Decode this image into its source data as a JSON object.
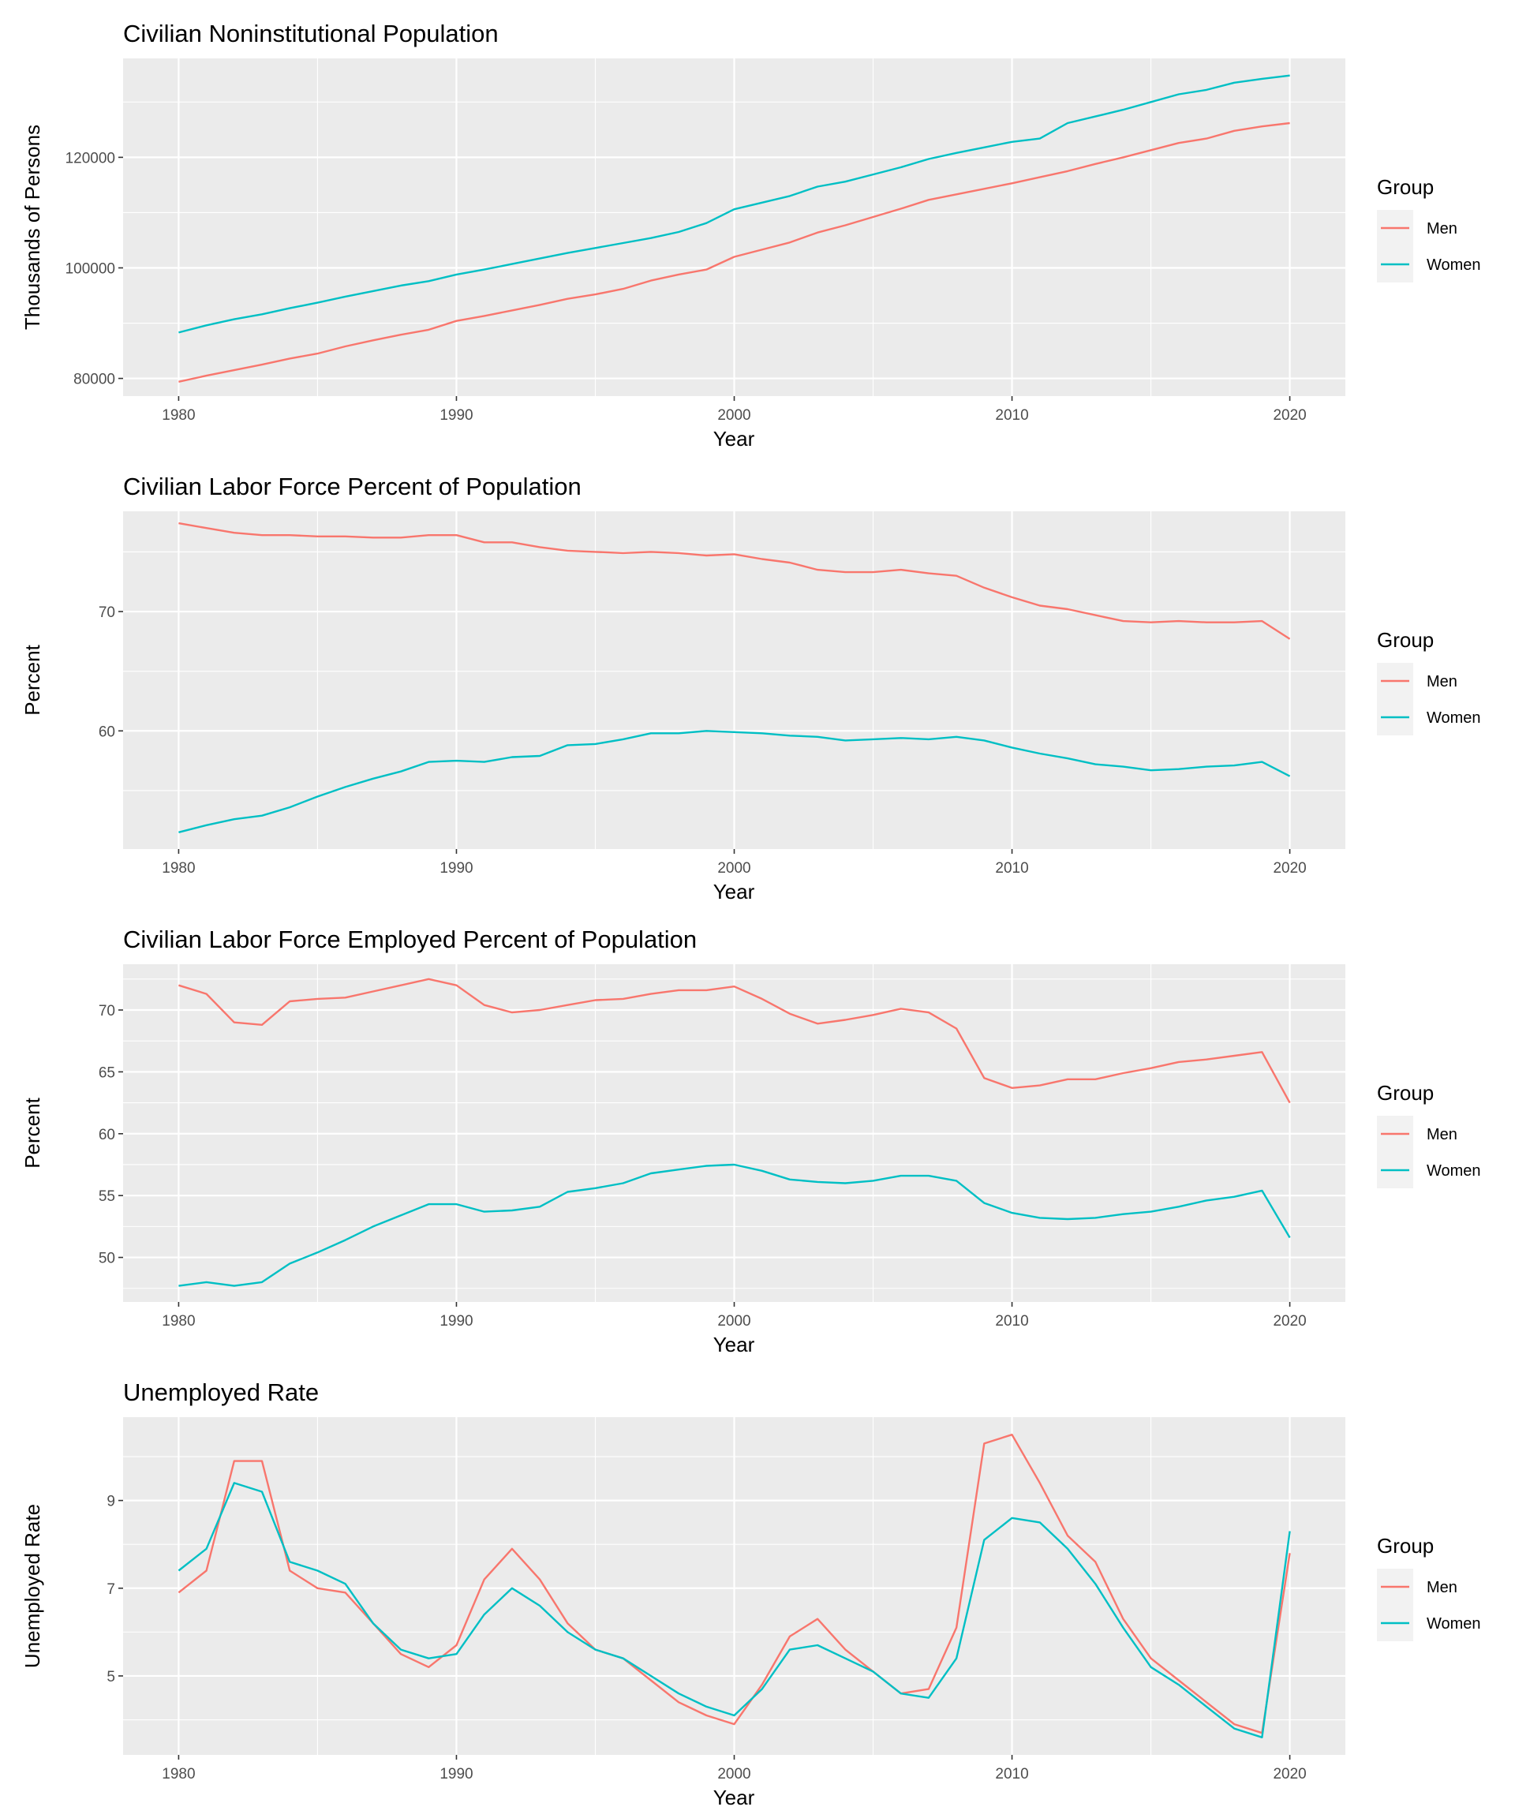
{
  "colors": {
    "men": "#F8766D",
    "women": "#00BFC4",
    "panel": "#EBEBEB",
    "grid": "#FFFFFF",
    "legend_key": "#F2F2F2"
  },
  "chart_data": [
    {
      "type": "line",
      "title": "Civilian Noninstitutional Population",
      "xlabel": "Year",
      "ylabel": "Thousands of Persons",
      "xlim": [
        1978,
        2022
      ],
      "ylim": [
        76800,
        137900
      ],
      "x_ticks": [
        1980,
        1990,
        2000,
        2010,
        2020
      ],
      "y_ticks": [
        80000,
        100000,
        120000
      ],
      "y_tick_labels": [
        "80000",
        "100000",
        "120000"
      ],
      "legend_title": "Group",
      "legend_position": "right",
      "x": [
        1980,
        1981,
        1982,
        1983,
        1984,
        1985,
        1986,
        1987,
        1988,
        1989,
        1990,
        1991,
        1992,
        1993,
        1994,
        1995,
        1996,
        1997,
        1998,
        1999,
        2000,
        2001,
        2002,
        2003,
        2004,
        2005,
        2006,
        2007,
        2008,
        2009,
        2010,
        2011,
        2012,
        2013,
        2014,
        2015,
        2016,
        2017,
        2018,
        2019,
        2020
      ],
      "series": [
        {
          "name": "Men",
          "values": [
            79400,
            80500,
            81500,
            82500,
            83600,
            84500,
            85800,
            86900,
            87900,
            88800,
            90400,
            91300,
            92300,
            93300,
            94400,
            95200,
            96200,
            97700,
            98800,
            99700,
            102000,
            103300,
            104600,
            106400,
            107700,
            109200,
            110700,
            112300,
            113300,
            114300,
            115300,
            116400,
            117500,
            118800,
            120000,
            121300,
            122600,
            123400,
            124800,
            125600,
            126200
          ]
        },
        {
          "name": "Women",
          "values": [
            88300,
            89600,
            90700,
            91600,
            92700,
            93700,
            94800,
            95800,
            96800,
            97600,
            98800,
            99700,
            100700,
            101700,
            102700,
            103600,
            104500,
            105400,
            106500,
            108100,
            110600,
            111800,
            113000,
            114700,
            115600,
            116900,
            118200,
            119700,
            120800,
            121800,
            122800,
            123400,
            126200,
            127400,
            128600,
            130000,
            131400,
            132200,
            133500,
            134200,
            134800
          ]
        }
      ]
    },
    {
      "type": "line",
      "title": "Civilian Labor Force Percent of Population",
      "xlabel": "Year",
      "ylabel": "Percent",
      "xlim": [
        1978,
        2022
      ],
      "ylim": [
        50.1,
        78.4
      ],
      "x_ticks": [
        1980,
        1990,
        2000,
        2010,
        2020
      ],
      "y_ticks": [
        60,
        70
      ],
      "y_tick_labels": [
        "60",
        "70"
      ],
      "legend_title": "Group",
      "legend_position": "right",
      "x": [
        1980,
        1981,
        1982,
        1983,
        1984,
        1985,
        1986,
        1987,
        1988,
        1989,
        1990,
        1991,
        1992,
        1993,
        1994,
        1995,
        1996,
        1997,
        1998,
        1999,
        2000,
        2001,
        2002,
        2003,
        2004,
        2005,
        2006,
        2007,
        2008,
        2009,
        2010,
        2011,
        2012,
        2013,
        2014,
        2015,
        2016,
        2017,
        2018,
        2019,
        2020
      ],
      "series": [
        {
          "name": "Men",
          "values": [
            77.4,
            77.0,
            76.6,
            76.4,
            76.4,
            76.3,
            76.3,
            76.2,
            76.2,
            76.4,
            76.4,
            75.8,
            75.8,
            75.4,
            75.1,
            75.0,
            74.9,
            75.0,
            74.9,
            74.7,
            74.8,
            74.4,
            74.1,
            73.5,
            73.3,
            73.3,
            73.5,
            73.2,
            73.0,
            72.0,
            71.2,
            70.5,
            70.2,
            69.7,
            69.2,
            69.1,
            69.2,
            69.1,
            69.1,
            69.2,
            67.7
          ]
        },
        {
          "name": "Women",
          "values": [
            51.5,
            52.1,
            52.6,
            52.9,
            53.6,
            54.5,
            55.3,
            56.0,
            56.6,
            57.4,
            57.5,
            57.4,
            57.8,
            57.9,
            58.8,
            58.9,
            59.3,
            59.8,
            59.8,
            60.0,
            59.9,
            59.8,
            59.6,
            59.5,
            59.2,
            59.3,
            59.4,
            59.3,
            59.5,
            59.2,
            58.6,
            58.1,
            57.7,
            57.2,
            57.0,
            56.7,
            56.8,
            57.0,
            57.1,
            57.4,
            56.2
          ]
        }
      ]
    },
    {
      "type": "line",
      "title": "Civilian Labor Force Employed Percent of Population",
      "xlabel": "Year",
      "ylabel": "Percent",
      "xlim": [
        1978,
        2022
      ],
      "ylim": [
        46.4,
        73.7
      ],
      "x_ticks": [
        1980,
        1990,
        2000,
        2010,
        2020
      ],
      "y_ticks": [
        50,
        55,
        60,
        65,
        70
      ],
      "y_tick_labels": [
        "50",
        "55",
        "60",
        "65",
        "70"
      ],
      "legend_title": "Group",
      "legend_position": "right",
      "x": [
        1980,
        1981,
        1982,
        1983,
        1984,
        1985,
        1986,
        1987,
        1988,
        1989,
        1990,
        1991,
        1992,
        1993,
        1994,
        1995,
        1996,
        1997,
        1998,
        1999,
        2000,
        2001,
        2002,
        2003,
        2004,
        2005,
        2006,
        2007,
        2008,
        2009,
        2010,
        2011,
        2012,
        2013,
        2014,
        2015,
        2016,
        2017,
        2018,
        2019,
        2020
      ],
      "series": [
        {
          "name": "Men",
          "values": [
            72.0,
            71.3,
            69.0,
            68.8,
            70.7,
            70.9,
            71.0,
            71.5,
            72.0,
            72.5,
            72.0,
            70.4,
            69.8,
            70.0,
            70.4,
            70.8,
            70.9,
            71.3,
            71.6,
            71.6,
            71.9,
            70.9,
            69.7,
            68.9,
            69.2,
            69.6,
            70.1,
            69.8,
            68.5,
            64.5,
            63.7,
            63.9,
            64.4,
            64.4,
            64.9,
            65.3,
            65.8,
            66.0,
            66.3,
            66.6,
            62.5
          ]
        },
        {
          "name": "Women",
          "values": [
            47.7,
            48.0,
            47.7,
            48.0,
            49.5,
            50.4,
            51.4,
            52.5,
            53.4,
            54.3,
            54.3,
            53.7,
            53.8,
            54.1,
            55.3,
            55.6,
            56.0,
            56.8,
            57.1,
            57.4,
            57.5,
            57.0,
            56.3,
            56.1,
            56.0,
            56.2,
            56.6,
            56.6,
            56.2,
            54.4,
            53.6,
            53.2,
            53.1,
            53.2,
            53.5,
            53.7,
            54.1,
            54.6,
            54.9,
            55.4,
            51.6
          ]
        }
      ]
    },
    {
      "type": "line",
      "title": "Unemployed Rate",
      "xlabel": "Year",
      "ylabel": "Unemployed Rate",
      "xlim": [
        1978,
        2022
      ],
      "ylim": [
        3.2,
        10.9
      ],
      "x_ticks": [
        1980,
        1990,
        2000,
        2010,
        2020
      ],
      "y_ticks": [
        5,
        7,
        9
      ],
      "y_tick_labels": [
        "5",
        "7",
        "9"
      ],
      "legend_title": "Group",
      "legend_position": "right",
      "x": [
        1980,
        1981,
        1982,
        1983,
        1984,
        1985,
        1986,
        1987,
        1988,
        1989,
        1990,
        1991,
        1992,
        1993,
        1994,
        1995,
        1996,
        1997,
        1998,
        1999,
        2000,
        2001,
        2002,
        2003,
        2004,
        2005,
        2006,
        2007,
        2008,
        2009,
        2010,
        2011,
        2012,
        2013,
        2014,
        2015,
        2016,
        2017,
        2018,
        2019,
        2020
      ],
      "series": [
        {
          "name": "Men",
          "values": [
            6.9,
            7.4,
            9.9,
            9.9,
            7.4,
            7.0,
            6.9,
            6.2,
            5.5,
            5.2,
            5.7,
            7.2,
            7.9,
            7.2,
            6.2,
            5.6,
            5.4,
            4.9,
            4.4,
            4.1,
            3.9,
            4.8,
            5.9,
            6.3,
            5.6,
            5.1,
            4.6,
            4.7,
            6.1,
            10.3,
            10.5,
            9.4,
            8.2,
            7.6,
            6.3,
            5.4,
            4.9,
            4.4,
            3.9,
            3.7,
            7.8
          ]
        },
        {
          "name": "Women",
          "values": [
            7.4,
            7.9,
            9.4,
            9.2,
            7.6,
            7.4,
            7.1,
            6.2,
            5.6,
            5.4,
            5.5,
            6.4,
            7.0,
            6.6,
            6.0,
            5.6,
            5.4,
            5.0,
            4.6,
            4.3,
            4.1,
            4.7,
            5.6,
            5.7,
            5.4,
            5.1,
            4.6,
            4.5,
            5.4,
            8.1,
            8.6,
            8.5,
            7.9,
            7.1,
            6.1,
            5.2,
            4.8,
            4.3,
            3.8,
            3.6,
            8.3
          ]
        }
      ]
    }
  ]
}
